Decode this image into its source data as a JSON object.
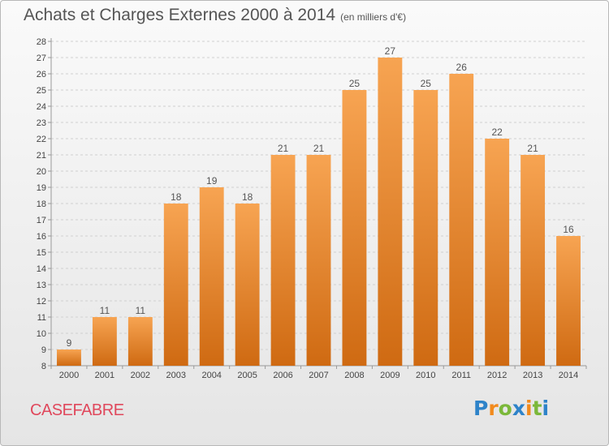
{
  "title": "Achats et Charges Externes 2000 à 2014",
  "unit_note": "(en milliers d'€)",
  "footer_name": "CASEFABRE",
  "logo": {
    "letters": [
      "P",
      "r",
      "o",
      "x",
      "i",
      "t",
      "i"
    ],
    "colors": [
      "#2e83c9",
      "#f28a1c",
      "#7bb83a",
      "#2e83c9",
      "#f28a1c",
      "#7bb83a",
      "#2e83c9"
    ]
  },
  "colors": {
    "bar_top": "#f7a452",
    "bar_bottom": "#cf6a12",
    "text": "#555555",
    "footer": "#e0485c"
  },
  "chart_data": {
    "type": "bar",
    "categories": [
      "2000",
      "2001",
      "2002",
      "2003",
      "2004",
      "2005",
      "2006",
      "2007",
      "2008",
      "2009",
      "2010",
      "2011",
      "2012",
      "2013",
      "2014"
    ],
    "values": [
      9,
      11,
      11,
      18,
      19,
      18,
      21,
      21,
      25,
      27,
      25,
      26,
      22,
      21,
      16
    ],
    "ylim": [
      8,
      28
    ],
    "yticks": [
      8,
      9,
      10,
      11,
      12,
      13,
      14,
      15,
      16,
      17,
      18,
      19,
      20,
      21,
      22,
      23,
      24,
      25,
      26,
      27,
      28
    ],
    "grid": true,
    "title": "Achats et Charges Externes 2000 à 2014",
    "xlabel": "",
    "ylabel": ""
  }
}
